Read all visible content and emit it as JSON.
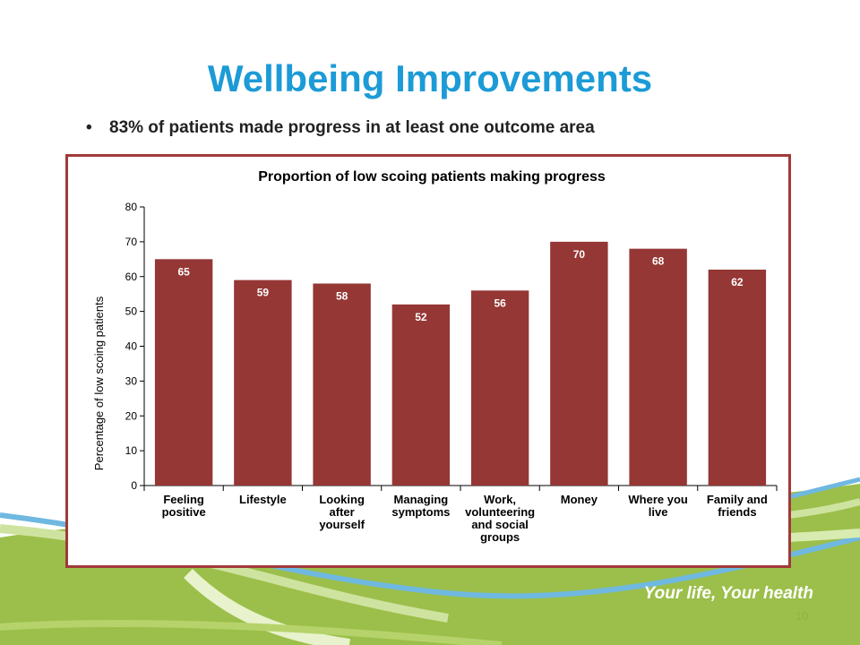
{
  "slide": {
    "title": "Wellbeing Improvements",
    "bullet": "83% of patients made progress in at least one outcome area",
    "tagline": "Your life, Your health",
    "page_number": "10"
  },
  "colors": {
    "title": "#1c9bd6",
    "bar": "#953735",
    "frame": "#a03a3a",
    "green": "#8fb446"
  },
  "chart_data": {
    "type": "bar",
    "title": "Proportion of low scoing patients making progress",
    "ylabel": "Percentage of low scoing patients",
    "xlabel": "",
    "ylim": [
      0,
      80
    ],
    "yticks": [
      0,
      10,
      20,
      30,
      40,
      50,
      60,
      70,
      80
    ],
    "grid": false,
    "categories": [
      [
        "Feeling",
        "positive"
      ],
      [
        "Lifestyle"
      ],
      [
        "Looking",
        "after",
        "yourself"
      ],
      [
        "Managing",
        "symptoms"
      ],
      [
        "Work,",
        "volunteering",
        "and social",
        "groups"
      ],
      [
        "Money"
      ],
      [
        "Where you",
        "live"
      ],
      [
        "Family and",
        "friends"
      ]
    ],
    "values": [
      65,
      59,
      58,
      52,
      56,
      70,
      68,
      62
    ]
  }
}
